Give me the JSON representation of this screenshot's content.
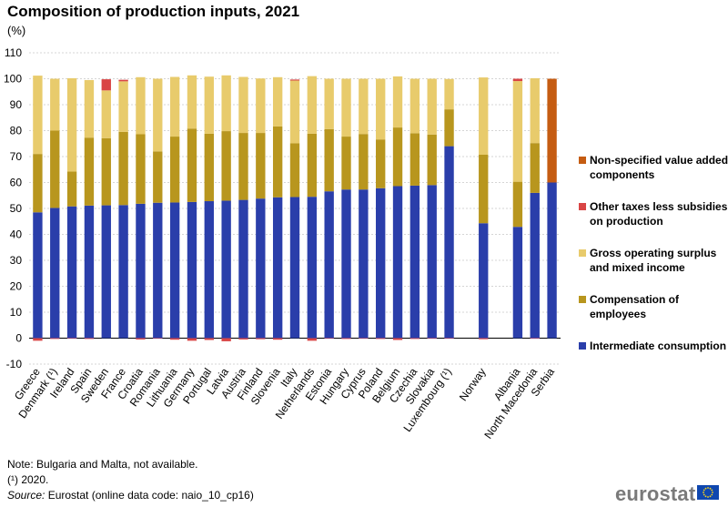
{
  "title": "Composition of production inputs, 2021",
  "unit": "(%)",
  "chart_data": {
    "type": "bar",
    "stacked": true,
    "ylim": [
      -10,
      110
    ],
    "yticks": [
      -10,
      0,
      10,
      20,
      30,
      40,
      50,
      60,
      70,
      80,
      90,
      100,
      110
    ],
    "categories": [
      "Greece",
      "Denmark (¹)",
      "Ireland",
      "Spain",
      "Sweden",
      "France",
      "Croatia",
      "Romania",
      "Lithuania",
      "Germany",
      "Portugal",
      "Latvia",
      "Austria",
      "Finland",
      "Slovenia",
      "Italy",
      "Netherlands",
      "Estonia",
      "Hungary",
      "Cyprus",
      "Poland",
      "Belgium",
      "Czechia",
      "Slovakia",
      "Luxembourg (¹)",
      "",
      "Norway",
      "",
      "Albania",
      "North Macedonia",
      "Serbia"
    ],
    "series": [
      {
        "name": "Intermediate consumption",
        "color": "#2a3eaa",
        "values": [
          48.5,
          50.2,
          50.8,
          51.1,
          51.2,
          51.3,
          51.8,
          52.2,
          52.3,
          52.5,
          52.8,
          53.0,
          53.3,
          53.8,
          54.3,
          54.4,
          54.5,
          56.6,
          57.3,
          57.3,
          57.8,
          58.6,
          58.8,
          59.0,
          74.0,
          null,
          44.3,
          null,
          42.9,
          56.0,
          60.0
        ]
      },
      {
        "name": "Compensation of employees",
        "color": "#b8961e",
        "values": [
          22.5,
          29.8,
          13.4,
          26.2,
          25.9,
          28.2,
          26.8,
          19.8,
          25.4,
          28.3,
          26.0,
          26.8,
          25.8,
          25.3,
          27.3,
          20.7,
          24.3,
          24.0,
          20.4,
          21.4,
          18.8,
          22.6,
          20.2,
          19.5,
          14.2,
          null,
          26.4,
          null,
          17.4,
          19.2,
          0.0
        ]
      },
      {
        "name": "Gross operating surplus and mixed income",
        "color": "#e8cb6c",
        "values": [
          30.2,
          20.0,
          36.0,
          22.2,
          18.4,
          19.5,
          22.0,
          28.0,
          23.0,
          20.5,
          22.0,
          21.5,
          21.6,
          21.0,
          19.0,
          24.2,
          22.2,
          19.4,
          22.3,
          21.3,
          23.4,
          19.7,
          21.0,
          21.5,
          11.7,
          null,
          29.8,
          null,
          38.8,
          25.0,
          0.0
        ]
      },
      {
        "name": "Other taxes less subsidies on production",
        "color": "#d94545",
        "values": [
          -1.0,
          -0.3,
          -0.2,
          -0.3,
          4.3,
          0.6,
          -0.5,
          -0.2,
          -0.6,
          -1.0,
          -0.7,
          -1.2,
          -0.5,
          -0.4,
          -0.6,
          0.4,
          -1.0,
          -0.2,
          -0.3,
          -0.2,
          -0.3,
          -0.7,
          -0.3,
          -0.2,
          -0.2,
          null,
          -0.4,
          null,
          0.9,
          -0.2,
          0.0
        ]
      },
      {
        "name": "Non-specified value added components",
        "color": "#c55c12",
        "values": [
          0,
          0,
          0,
          0,
          0,
          0,
          0,
          0,
          0,
          0,
          0,
          0,
          0,
          0,
          0,
          0,
          0,
          0,
          0,
          0,
          0,
          0,
          0,
          0,
          0,
          null,
          0,
          null,
          0,
          0,
          40.0
        ]
      }
    ],
    "legend": {
      "position": "right",
      "order": [
        {
          "label": "Non-specified value added components",
          "color": "#c55c12"
        },
        {
          "label": "Other taxes less subsidies on production",
          "color": "#d94545"
        },
        {
          "label": "Gross operating surplus and mixed income",
          "color": "#e8cb6c"
        },
        {
          "label": "Compensation of employees",
          "color": "#b8961e"
        },
        {
          "label": "Intermediate consumption",
          "color": "#2a3eaa"
        }
      ]
    }
  },
  "notes": {
    "line1": "Note: Bulgaria and Malta, not available.",
    "line2": "(¹) 2020.",
    "source_label": "Source:",
    "source_text": " Eurostat (online data code: naio_10_cp16)"
  },
  "logo": {
    "text": "eurostat"
  }
}
